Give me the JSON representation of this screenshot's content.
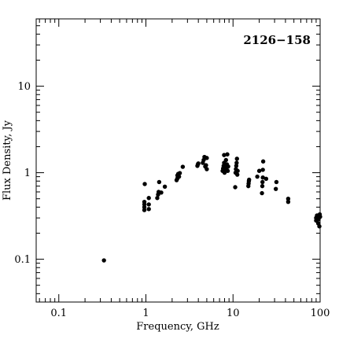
{
  "chart_data": {
    "type": "scatter",
    "title": "2126−158",
    "xlabel": "Frequency, GHz",
    "ylabel": "Flux Density, Jy",
    "xscale": "log",
    "yscale": "log",
    "xlim": [
      0.055,
      100
    ],
    "ylim": [
      0.032,
      60
    ],
    "grid": false,
    "legend": "none",
    "title_placement": "top-right",
    "xticks": [
      {
        "v": 0.1,
        "label": "0.1"
      },
      {
        "v": 1,
        "label": "1"
      },
      {
        "v": 10,
        "label": "10"
      },
      {
        "v": 100,
        "label": "100"
      }
    ],
    "yticks": [
      {
        "v": 0.1,
        "label": "0.1"
      },
      {
        "v": 1,
        "label": "1"
      },
      {
        "v": 10,
        "label": "10"
      }
    ],
    "points": [
      {
        "x": 0.33,
        "y": 0.097
      },
      {
        "x": 0.96,
        "y": 0.37
      },
      {
        "x": 0.96,
        "y": 0.4
      },
      {
        "x": 0.96,
        "y": 0.43
      },
      {
        "x": 0.96,
        "y": 0.46
      },
      {
        "x": 0.97,
        "y": 0.74
      },
      {
        "x": 1.08,
        "y": 0.38
      },
      {
        "x": 1.08,
        "y": 0.43
      },
      {
        "x": 1.08,
        "y": 0.51
      },
      {
        "x": 1.35,
        "y": 0.51
      },
      {
        "x": 1.38,
        "y": 0.56
      },
      {
        "x": 1.4,
        "y": 0.6
      },
      {
        "x": 1.42,
        "y": 0.78
      },
      {
        "x": 1.5,
        "y": 0.59
      },
      {
        "x": 1.65,
        "y": 0.69
      },
      {
        "x": 2.25,
        "y": 0.82
      },
      {
        "x": 2.3,
        "y": 0.86
      },
      {
        "x": 2.3,
        "y": 0.93
      },
      {
        "x": 2.35,
        "y": 0.97
      },
      {
        "x": 2.4,
        "y": 0.9
      },
      {
        "x": 2.45,
        "y": 0.99
      },
      {
        "x": 2.65,
        "y": 1.17
      },
      {
        "x": 3.9,
        "y": 1.2
      },
      {
        "x": 3.95,
        "y": 1.25
      },
      {
        "x": 4.0,
        "y": 1.28
      },
      {
        "x": 4.5,
        "y": 1.3
      },
      {
        "x": 4.6,
        "y": 1.4
      },
      {
        "x": 4.7,
        "y": 1.52
      },
      {
        "x": 4.8,
        "y": 1.18
      },
      {
        "x": 4.9,
        "y": 1.22
      },
      {
        "x": 5.0,
        "y": 1.48
      },
      {
        "x": 5.0,
        "y": 1.1
      },
      {
        "x": 7.6,
        "y": 1.05
      },
      {
        "x": 7.7,
        "y": 1.12
      },
      {
        "x": 7.8,
        "y": 1.2
      },
      {
        "x": 7.9,
        "y": 1.3
      },
      {
        "x": 7.9,
        "y": 1.6
      },
      {
        "x": 8.0,
        "y": 1.0
      },
      {
        "x": 8.1,
        "y": 1.08
      },
      {
        "x": 8.2,
        "y": 1.15
      },
      {
        "x": 8.3,
        "y": 1.4
      },
      {
        "x": 8.4,
        "y": 1.1
      },
      {
        "x": 8.5,
        "y": 1.25
      },
      {
        "x": 8.6,
        "y": 1.63
      },
      {
        "x": 8.7,
        "y": 1.05
      },
      {
        "x": 8.8,
        "y": 1.18
      },
      {
        "x": 10.6,
        "y": 0.68
      },
      {
        "x": 10.7,
        "y": 1.0
      },
      {
        "x": 10.8,
        "y": 1.1
      },
      {
        "x": 10.9,
        "y": 1.2
      },
      {
        "x": 11.0,
        "y": 1.3
      },
      {
        "x": 11.1,
        "y": 1.45
      },
      {
        "x": 11.2,
        "y": 0.95
      },
      {
        "x": 11.3,
        "y": 1.05
      },
      {
        "x": 15.0,
        "y": 0.7
      },
      {
        "x": 15.1,
        "y": 0.75
      },
      {
        "x": 15.2,
        "y": 0.8
      },
      {
        "x": 15.3,
        "y": 0.83
      },
      {
        "x": 19.0,
        "y": 0.9
      },
      {
        "x": 20.0,
        "y": 1.05
      },
      {
        "x": 21.5,
        "y": 0.58
      },
      {
        "x": 21.7,
        "y": 0.7
      },
      {
        "x": 21.8,
        "y": 0.78
      },
      {
        "x": 22.0,
        "y": 0.88
      },
      {
        "x": 22.0,
        "y": 1.08
      },
      {
        "x": 22.2,
        "y": 1.35
      },
      {
        "x": 24.0,
        "y": 0.85
      },
      {
        "x": 31.0,
        "y": 0.65
      },
      {
        "x": 31.5,
        "y": 0.78
      },
      {
        "x": 43.0,
        "y": 0.46
      },
      {
        "x": 43.0,
        "y": 0.5
      },
      {
        "x": 90.0,
        "y": 0.28
      },
      {
        "x": 90.0,
        "y": 0.3
      },
      {
        "x": 92.0,
        "y": 0.32
      },
      {
        "x": 95.0,
        "y": 0.26
      },
      {
        "x": 96.0,
        "y": 0.29
      },
      {
        "x": 98.0,
        "y": 0.24
      },
      {
        "x": 99.0,
        "y": 0.33
      },
      {
        "x": 100.0,
        "y": 0.31
      }
    ]
  }
}
